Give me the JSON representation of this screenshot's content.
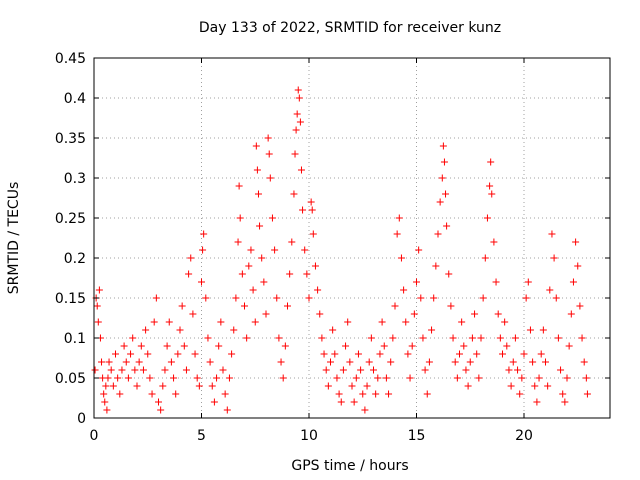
{
  "chart_data": {
    "type": "scatter",
    "title": "Day 133 of 2022, SRMTID for receiver kunz",
    "xlabel": "GPS time / hours",
    "ylabel": "SRMTID / TECUs",
    "xlim": [
      0,
      24
    ],
    "ylim": [
      0,
      0.45
    ],
    "x_ticks": [
      0,
      5,
      10,
      15,
      20
    ],
    "x_tick_labels": [
      "0",
      "5",
      "10",
      "15",
      "20"
    ],
    "y_ticks": [
      0,
      0.05,
      0.1,
      0.15,
      0.2,
      0.25,
      0.3,
      0.35,
      0.4,
      0.45
    ],
    "y_tick_labels": [
      "0",
      "0.05",
      "0.1",
      "0.15",
      "0.2",
      "0.25",
      "0.3",
      "0.35",
      "0.4",
      "0.45"
    ],
    "grid": true,
    "marker": "+",
    "color": "#ff0000",
    "series": [
      {
        "name": "SRMTID",
        "points": [
          [
            0.05,
            0.06
          ],
          [
            0.1,
            0.15
          ],
          [
            0.15,
            0.14
          ],
          [
            0.2,
            0.12
          ],
          [
            0.25,
            0.16
          ],
          [
            0.3,
            0.1
          ],
          [
            0.35,
            0.07
          ],
          [
            0.4,
            0.05
          ],
          [
            0.45,
            0.03
          ],
          [
            0.5,
            0.02
          ],
          [
            0.55,
            0.04
          ],
          [
            0.6,
            0.01
          ],
          [
            0.65,
            0.05
          ],
          [
            0.7,
            0.07
          ],
          [
            0.8,
            0.06
          ],
          [
            0.9,
            0.04
          ],
          [
            1.0,
            0.08
          ],
          [
            1.1,
            0.05
          ],
          [
            1.2,
            0.03
          ],
          [
            1.3,
            0.06
          ],
          [
            1.4,
            0.09
          ],
          [
            1.5,
            0.07
          ],
          [
            1.6,
            0.05
          ],
          [
            1.7,
            0.08
          ],
          [
            1.8,
            0.1
          ],
          [
            1.9,
            0.06
          ],
          [
            2.0,
            0.04
          ],
          [
            2.1,
            0.07
          ],
          [
            2.2,
            0.09
          ],
          [
            2.3,
            0.06
          ],
          [
            2.4,
            0.11
          ],
          [
            2.5,
            0.08
          ],
          [
            2.6,
            0.05
          ],
          [
            2.7,
            0.03
          ],
          [
            2.8,
            0.12
          ],
          [
            2.9,
            0.15
          ],
          [
            3.0,
            0.02
          ],
          [
            3.1,
            0.01
          ],
          [
            3.2,
            0.04
          ],
          [
            3.3,
            0.06
          ],
          [
            3.4,
            0.09
          ],
          [
            3.5,
            0.12
          ],
          [
            3.6,
            0.07
          ],
          [
            3.7,
            0.05
          ],
          [
            3.8,
            0.03
          ],
          [
            3.9,
            0.08
          ],
          [
            4.0,
            0.11
          ],
          [
            4.1,
            0.14
          ],
          [
            4.2,
            0.09
          ],
          [
            4.3,
            0.06
          ],
          [
            4.4,
            0.18
          ],
          [
            4.5,
            0.2
          ],
          [
            4.6,
            0.13
          ],
          [
            4.7,
            0.08
          ],
          [
            4.8,
            0.05
          ],
          [
            4.9,
            0.04
          ],
          [
            5.0,
            0.17
          ],
          [
            5.05,
            0.21
          ],
          [
            5.1,
            0.23
          ],
          [
            5.2,
            0.15
          ],
          [
            5.3,
            0.1
          ],
          [
            5.4,
            0.07
          ],
          [
            5.5,
            0.04
          ],
          [
            5.6,
            0.02
          ],
          [
            5.7,
            0.05
          ],
          [
            5.8,
            0.09
          ],
          [
            5.9,
            0.12
          ],
          [
            6.0,
            0.06
          ],
          [
            6.1,
            0.03
          ],
          [
            6.2,
            0.01
          ],
          [
            6.3,
            0.05
          ],
          [
            6.4,
            0.08
          ],
          [
            6.5,
            0.11
          ],
          [
            6.6,
            0.15
          ],
          [
            6.7,
            0.22
          ],
          [
            6.75,
            0.29
          ],
          [
            6.8,
            0.25
          ],
          [
            6.9,
            0.18
          ],
          [
            7.0,
            0.14
          ],
          [
            7.1,
            0.1
          ],
          [
            7.2,
            0.19
          ],
          [
            7.3,
            0.21
          ],
          [
            7.4,
            0.16
          ],
          [
            7.5,
            0.12
          ],
          [
            7.55,
            0.34
          ],
          [
            7.6,
            0.31
          ],
          [
            7.65,
            0.28
          ],
          [
            7.7,
            0.24
          ],
          [
            7.8,
            0.2
          ],
          [
            7.9,
            0.17
          ],
          [
            8.0,
            0.13
          ],
          [
            8.1,
            0.35
          ],
          [
            8.15,
            0.33
          ],
          [
            8.2,
            0.3
          ],
          [
            8.3,
            0.25
          ],
          [
            8.4,
            0.21
          ],
          [
            8.5,
            0.15
          ],
          [
            8.6,
            0.1
          ],
          [
            8.7,
            0.07
          ],
          [
            8.8,
            0.05
          ],
          [
            8.9,
            0.09
          ],
          [
            9.0,
            0.14
          ],
          [
            9.1,
            0.18
          ],
          [
            9.2,
            0.22
          ],
          [
            9.3,
            0.28
          ],
          [
            9.35,
            0.33
          ],
          [
            9.4,
            0.36
          ],
          [
            9.45,
            0.38
          ],
          [
            9.5,
            0.41
          ],
          [
            9.55,
            0.4
          ],
          [
            9.6,
            0.37
          ],
          [
            9.65,
            0.31
          ],
          [
            9.7,
            0.26
          ],
          [
            9.8,
            0.21
          ],
          [
            9.9,
            0.18
          ],
          [
            10.0,
            0.15
          ],
          [
            10.1,
            0.27
          ],
          [
            10.15,
            0.26
          ],
          [
            10.2,
            0.23
          ],
          [
            10.3,
            0.19
          ],
          [
            10.4,
            0.16
          ],
          [
            10.5,
            0.13
          ],
          [
            10.6,
            0.1
          ],
          [
            10.7,
            0.08
          ],
          [
            10.8,
            0.06
          ],
          [
            10.9,
            0.04
          ],
          [
            11.0,
            0.07
          ],
          [
            11.1,
            0.11
          ],
          [
            11.2,
            0.08
          ],
          [
            11.3,
            0.05
          ],
          [
            11.4,
            0.03
          ],
          [
            11.5,
            0.02
          ],
          [
            11.6,
            0.06
          ],
          [
            11.7,
            0.09
          ],
          [
            11.8,
            0.12
          ],
          [
            11.9,
            0.07
          ],
          [
            12.0,
            0.04
          ],
          [
            12.1,
            0.02
          ],
          [
            12.2,
            0.05
          ],
          [
            12.3,
            0.08
          ],
          [
            12.4,
            0.06
          ],
          [
            12.5,
            0.03
          ],
          [
            12.6,
            0.01
          ],
          [
            12.7,
            0.04
          ],
          [
            12.8,
            0.07
          ],
          [
            12.9,
            0.1
          ],
          [
            13.0,
            0.06
          ],
          [
            13.1,
            0.03
          ],
          [
            13.2,
            0.05
          ],
          [
            13.3,
            0.08
          ],
          [
            13.4,
            0.12
          ],
          [
            13.5,
            0.09
          ],
          [
            13.6,
            0.05
          ],
          [
            13.7,
            0.03
          ],
          [
            13.8,
            0.07
          ],
          [
            13.9,
            0.1
          ],
          [
            14.0,
            0.14
          ],
          [
            14.1,
            0.23
          ],
          [
            14.2,
            0.25
          ],
          [
            14.3,
            0.2
          ],
          [
            14.4,
            0.16
          ],
          [
            14.5,
            0.12
          ],
          [
            14.6,
            0.08
          ],
          [
            14.7,
            0.05
          ],
          [
            14.8,
            0.09
          ],
          [
            14.9,
            0.13
          ],
          [
            15.0,
            0.17
          ],
          [
            15.1,
            0.21
          ],
          [
            15.2,
            0.15
          ],
          [
            15.3,
            0.1
          ],
          [
            15.4,
            0.06
          ],
          [
            15.5,
            0.03
          ],
          [
            15.6,
            0.07
          ],
          [
            15.7,
            0.11
          ],
          [
            15.8,
            0.15
          ],
          [
            15.9,
            0.19
          ],
          [
            16.0,
            0.23
          ],
          [
            16.1,
            0.27
          ],
          [
            16.2,
            0.3
          ],
          [
            16.25,
            0.34
          ],
          [
            16.3,
            0.32
          ],
          [
            16.35,
            0.28
          ],
          [
            16.4,
            0.24
          ],
          [
            16.5,
            0.18
          ],
          [
            16.6,
            0.14
          ],
          [
            16.7,
            0.1
          ],
          [
            16.8,
            0.07
          ],
          [
            16.9,
            0.05
          ],
          [
            17.0,
            0.08
          ],
          [
            17.1,
            0.12
          ],
          [
            17.2,
            0.09
          ],
          [
            17.3,
            0.06
          ],
          [
            17.4,
            0.04
          ],
          [
            17.5,
            0.07
          ],
          [
            17.6,
            0.1
          ],
          [
            17.7,
            0.13
          ],
          [
            17.8,
            0.08
          ],
          [
            17.9,
            0.05
          ],
          [
            18.0,
            0.1
          ],
          [
            18.1,
            0.15
          ],
          [
            18.2,
            0.2
          ],
          [
            18.3,
            0.25
          ],
          [
            18.4,
            0.29
          ],
          [
            18.45,
            0.32
          ],
          [
            18.5,
            0.28
          ],
          [
            18.6,
            0.22
          ],
          [
            18.7,
            0.17
          ],
          [
            18.8,
            0.13
          ],
          [
            18.9,
            0.1
          ],
          [
            19.0,
            0.08
          ],
          [
            19.1,
            0.12
          ],
          [
            19.2,
            0.09
          ],
          [
            19.3,
            0.06
          ],
          [
            19.4,
            0.04
          ],
          [
            19.5,
            0.07
          ],
          [
            19.6,
            0.1
          ],
          [
            19.7,
            0.06
          ],
          [
            19.8,
            0.03
          ],
          [
            19.9,
            0.05
          ],
          [
            20.0,
            0.08
          ],
          [
            20.1,
            0.15
          ],
          [
            20.2,
            0.17
          ],
          [
            20.3,
            0.11
          ],
          [
            20.4,
            0.07
          ],
          [
            20.5,
            0.04
          ],
          [
            20.6,
            0.02
          ],
          [
            20.7,
            0.05
          ],
          [
            20.8,
            0.08
          ],
          [
            20.9,
            0.11
          ],
          [
            21.0,
            0.07
          ],
          [
            21.1,
            0.04
          ],
          [
            21.2,
            0.16
          ],
          [
            21.3,
            0.23
          ],
          [
            21.4,
            0.2
          ],
          [
            21.5,
            0.15
          ],
          [
            21.6,
            0.1
          ],
          [
            21.7,
            0.06
          ],
          [
            21.8,
            0.03
          ],
          [
            21.9,
            0.02
          ],
          [
            22.0,
            0.05
          ],
          [
            22.1,
            0.09
          ],
          [
            22.2,
            0.13
          ],
          [
            22.3,
            0.17
          ],
          [
            22.4,
            0.22
          ],
          [
            22.5,
            0.19
          ],
          [
            22.6,
            0.14
          ],
          [
            22.7,
            0.1
          ],
          [
            22.8,
            0.07
          ],
          [
            22.9,
            0.05
          ],
          [
            22.95,
            0.03
          ]
        ]
      }
    ]
  }
}
